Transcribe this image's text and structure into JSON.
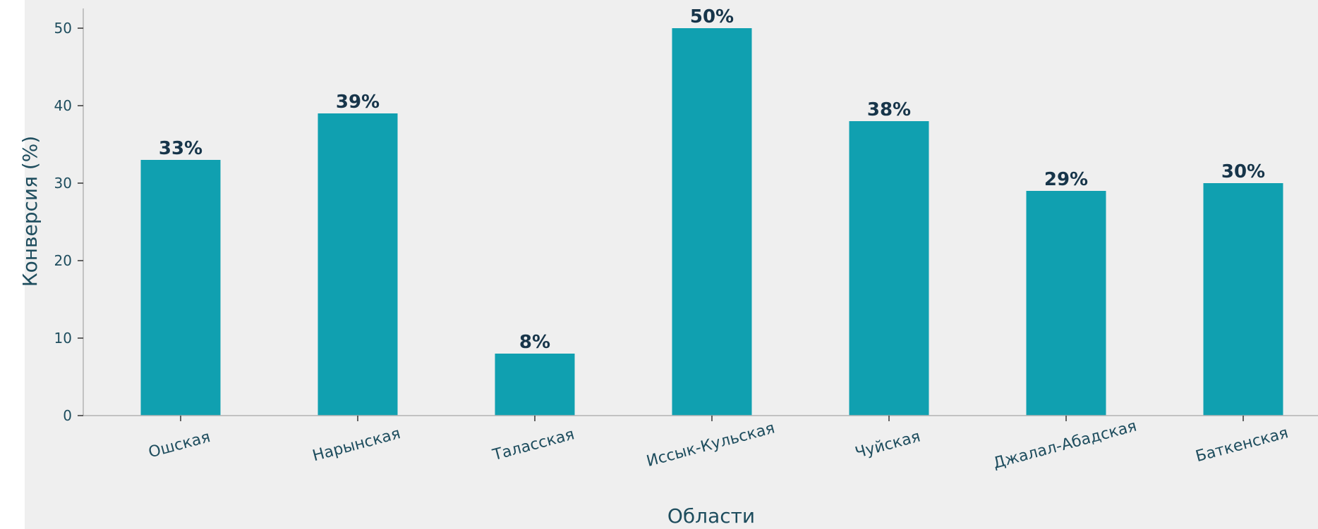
{
  "chart_data": {
    "type": "bar",
    "title": "",
    "xlabel": "Области",
    "ylabel": "Конверсия (%)",
    "categories": [
      "Ошская",
      "Нарынская",
      "Таласская",
      "Иссык-Кульская",
      "Чуйская",
      "Джалал-Абадская",
      "Баткенская"
    ],
    "values": [
      33,
      39,
      8,
      50,
      38,
      29,
      30
    ],
    "data_labels": [
      "33%",
      "39%",
      "8%",
      "50%",
      "38%",
      "29%",
      "30%"
    ],
    "y_ticks": [
      0,
      10,
      20,
      30,
      40,
      50
    ],
    "ylim": [
      0,
      52.5
    ],
    "grid": false,
    "colors": {
      "bar": "#10a0b0",
      "plot_background": "#efefef",
      "axis": "#b4b4b4",
      "text": "#1e4d5e",
      "data_label": "#17354a"
    }
  }
}
